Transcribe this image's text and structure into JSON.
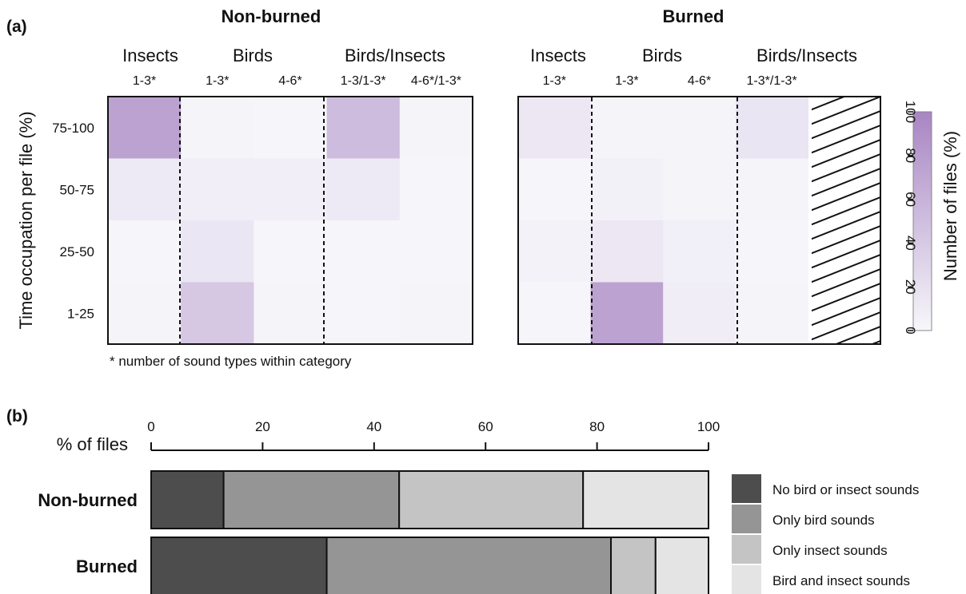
{
  "panels": {
    "a": "(a)",
    "b": "(b)"
  },
  "chart_data": [
    {
      "type": "heatmap",
      "title": "Non-burned",
      "groups": [
        "Insects",
        "Birds",
        "Birds/Insects"
      ],
      "columns": [
        "1-3*",
        "1-3*",
        "4-6*",
        "1-3/1-3*",
        "4-6*/1-3*"
      ],
      "rows": [
        "75-100",
        "50-75",
        "25-50",
        "1-25"
      ],
      "ylabel": "Time occupation per file (%)",
      "footnote": "* number of sound types within category",
      "values": [
        [
          75,
          3,
          1,
          52,
          3
        ],
        [
          11,
          8,
          8,
          11,
          1
        ],
        [
          1,
          15,
          1,
          1,
          1
        ],
        [
          3,
          42,
          3,
          1,
          3
        ]
      ]
    },
    {
      "type": "heatmap",
      "title": "Burned",
      "groups": [
        "Insects",
        "Birds",
        "Birds/Insects"
      ],
      "columns": [
        "1-3*",
        "1-3*",
        "4-6*",
        "1-3*/1-3*"
      ],
      "rows": [
        "75-100",
        "50-75",
        "25-50",
        "1-25"
      ],
      "hatched_column": 4,
      "values": [
        [
          14,
          3,
          3,
          16
        ],
        [
          1,
          5,
          3,
          3
        ],
        [
          4,
          14,
          7,
          1
        ],
        [
          1,
          75,
          9,
          3
        ]
      ],
      "colorbar": {
        "label": "Number of files (%)",
        "ticks": [
          "0",
          "20",
          "40",
          "60",
          "80",
          "100"
        ],
        "range": [
          0,
          100
        ],
        "color_low": "#f7f7fb",
        "color_high": "#a885c3"
      }
    },
    {
      "type": "bar",
      "orientation": "horizontal",
      "stacked": true,
      "xlabel": "% of files",
      "xlim": [
        0,
        100
      ],
      "xticks": [
        "0",
        "20",
        "40",
        "60",
        "80",
        "100"
      ],
      "categories": [
        "Non-burned",
        "Burned"
      ],
      "series": [
        {
          "name": "No bird or insect sounds",
          "values": [
            13,
            31.5
          ],
          "color": "#4d4d4d"
        },
        {
          "name": "Only bird sounds",
          "values": [
            31.5,
            51
          ],
          "color": "#959595"
        },
        {
          "name": "Only insect sounds",
          "values": [
            33,
            8
          ],
          "color": "#c4c4c4"
        },
        {
          "name": "Bird and insect sounds",
          "values": [
            22.5,
            9.5
          ],
          "color": "#e4e4e4"
        }
      ]
    }
  ]
}
